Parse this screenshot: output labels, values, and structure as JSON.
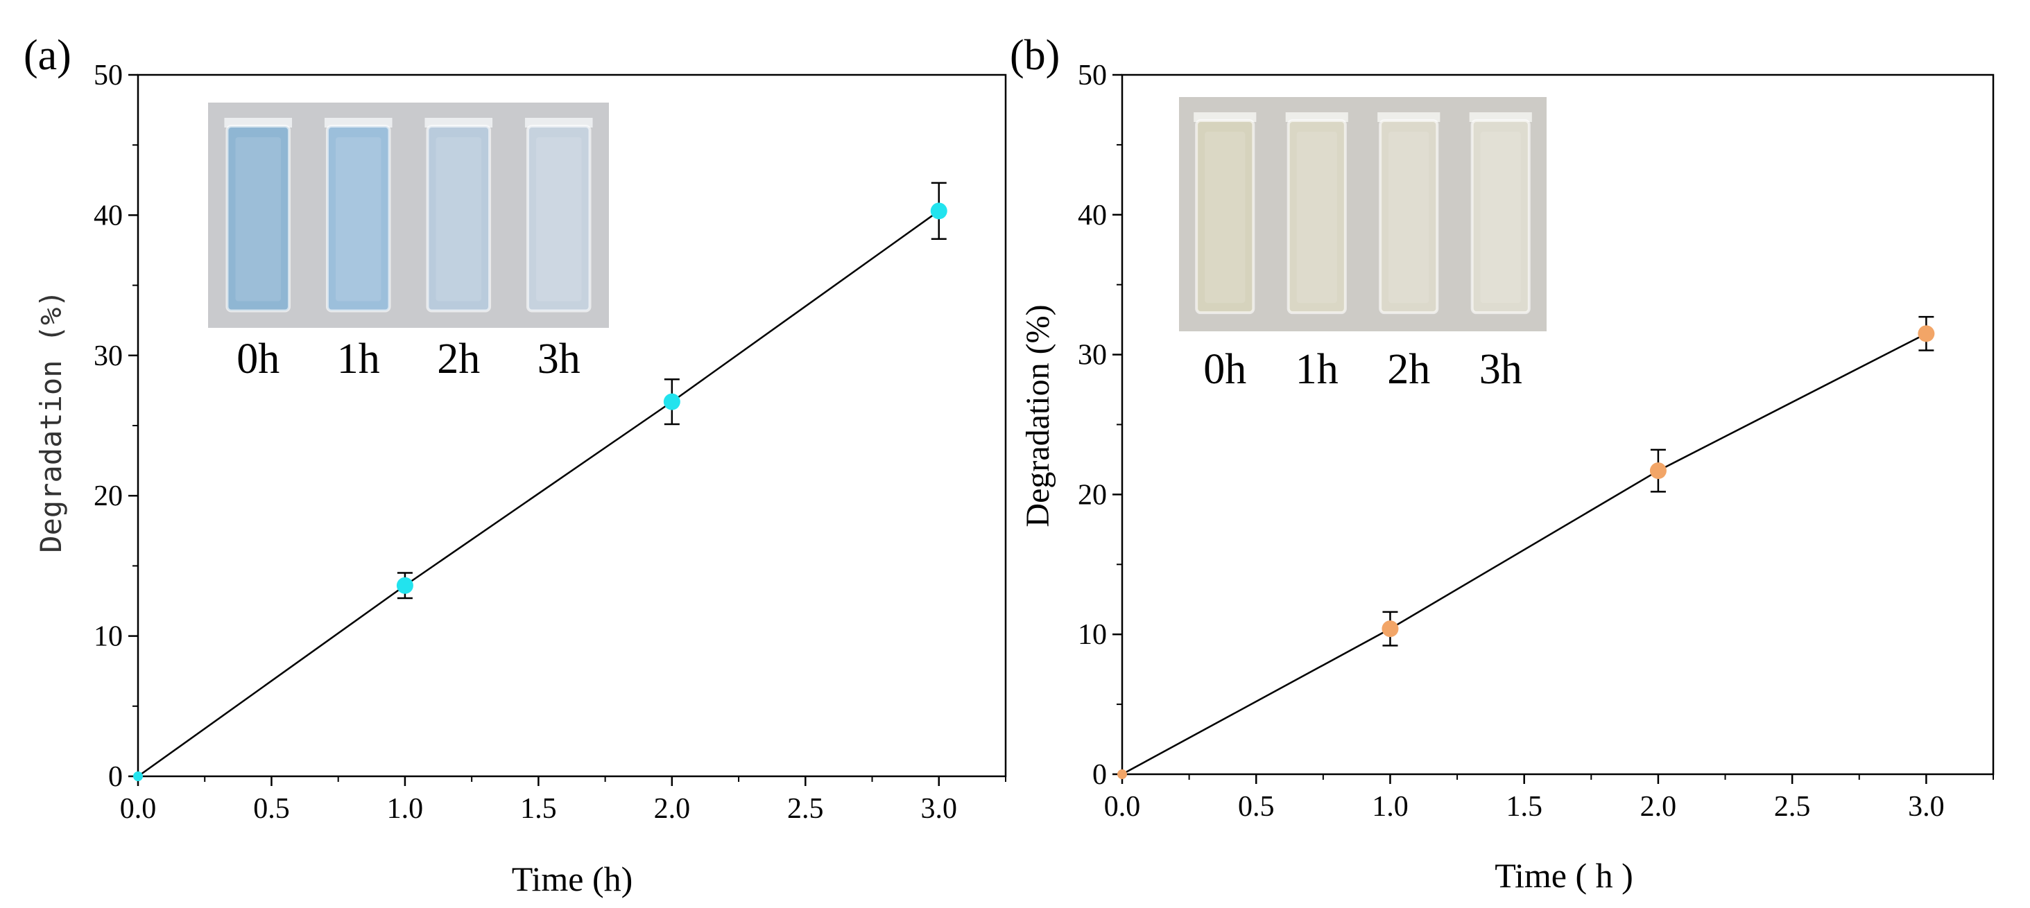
{
  "colors": {
    "series_a": "#22e3ee",
    "series_b": "#f2a567",
    "line": "#000000",
    "axis": "#000000"
  },
  "chart_data": [
    {
      "panel_label": "(a)",
      "type": "line",
      "title": "",
      "xlabel": "Time (h)",
      "ylabel": "Degradation (%)",
      "xlim": [
        0,
        3.25
      ],
      "ylim": [
        0,
        50
      ],
      "xticks": [
        "0.0",
        "0.5",
        "1.0",
        "1.5",
        "2.0",
        "2.5",
        "3.0"
      ],
      "yticks": [
        "0",
        "10",
        "20",
        "30",
        "40",
        "50"
      ],
      "grid": false,
      "series": [
        {
          "name": "Degradation",
          "x": [
            0,
            1,
            2,
            3
          ],
          "y": [
            0,
            13.6,
            26.7,
            40.3
          ],
          "error": [
            0,
            0.9,
            1.6,
            2.0
          ]
        }
      ],
      "inset": {
        "description_photo": "cuvettes",
        "labels": [
          "0h",
          "1h",
          "2h",
          "3h"
        ],
        "liquid_tint": [
          "#8fb6d3",
          "#9cbfdb",
          "#b9cbdc",
          "#c6d2de"
        ]
      }
    },
    {
      "panel_label": "(b)",
      "type": "line",
      "title": "",
      "xlabel": "Time ( h )",
      "ylabel": "Degradation (%)",
      "xlim": [
        0,
        3.25
      ],
      "ylim": [
        0,
        50
      ],
      "xticks": [
        "0.0",
        "0.5",
        "1.0",
        "1.5",
        "2.0",
        "2.5",
        "3.0"
      ],
      "yticks": [
        "0",
        "10",
        "20",
        "30",
        "40",
        "50"
      ],
      "grid": false,
      "series": [
        {
          "name": "Degradation",
          "x": [
            0,
            1,
            2,
            3
          ],
          "y": [
            0,
            10.4,
            21.7,
            31.5
          ],
          "error": [
            0,
            1.2,
            1.5,
            1.2
          ]
        }
      ],
      "inset": {
        "description_photo": "cuvettes",
        "labels": [
          "0h",
          "1h",
          "2h",
          "3h"
        ],
        "liquid_tint": [
          "#d6d3bd",
          "#dad7c5",
          "#dcd9cb",
          "#dedcd0"
        ]
      }
    }
  ]
}
